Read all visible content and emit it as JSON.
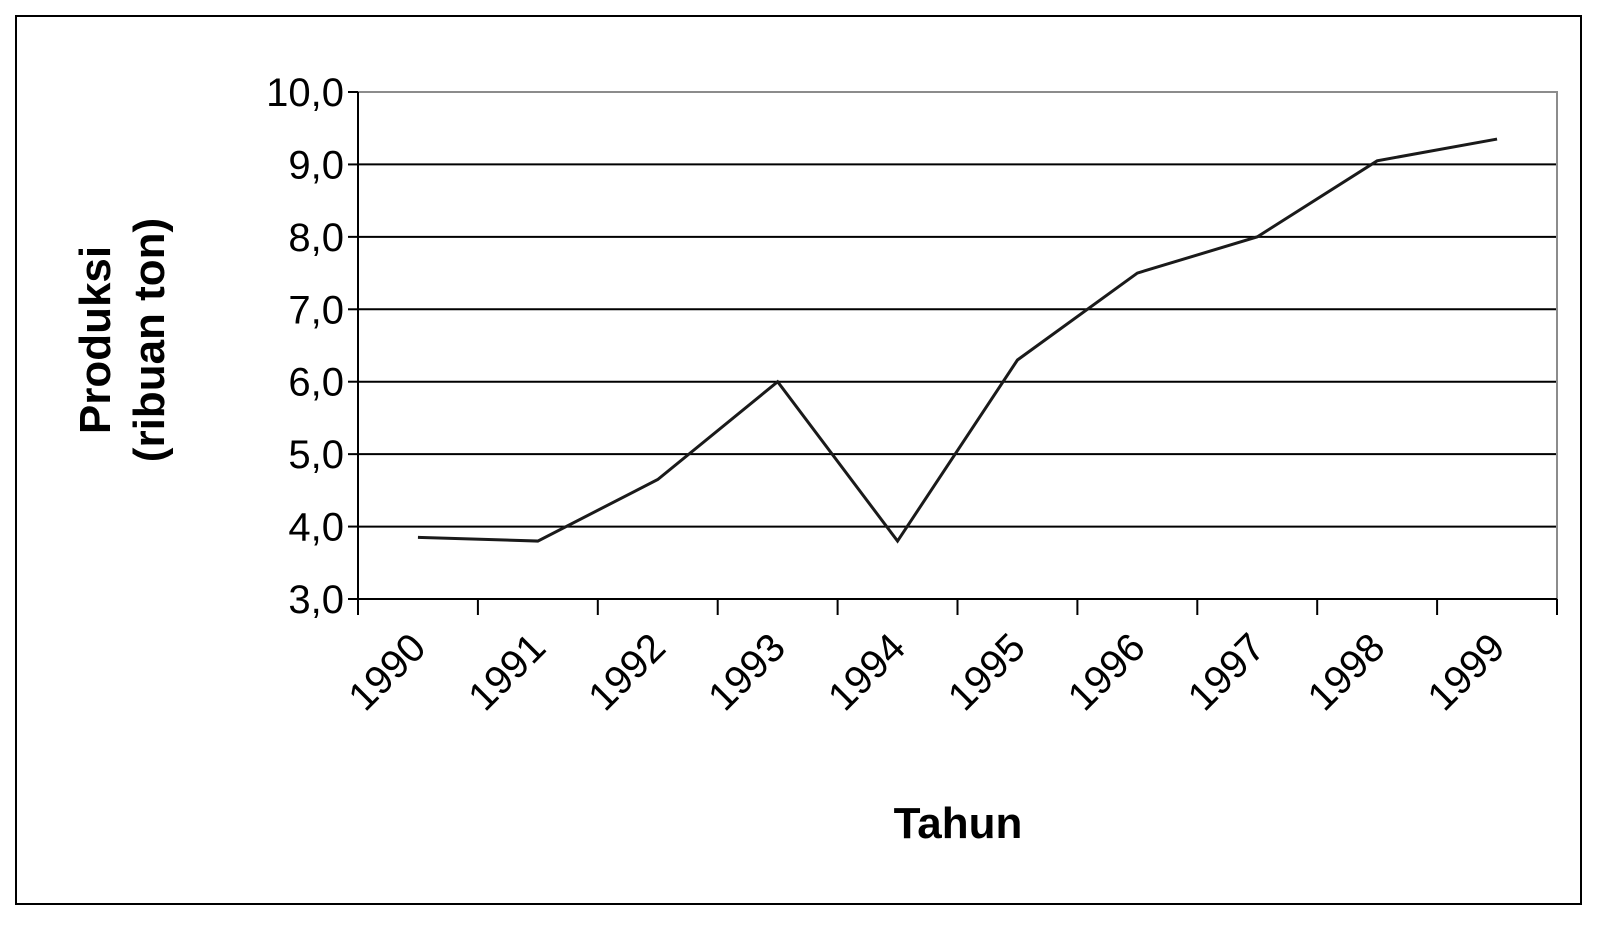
{
  "chart_data": {
    "type": "line",
    "title": "",
    "xlabel": "Tahun",
    "ylabel_line1": "Produksi",
    "ylabel_line2": "(ribuan ton)",
    "categories": [
      "1990",
      "1991",
      "1992",
      "1993",
      "1994",
      "1995",
      "1996",
      "1997",
      "1998",
      "1999"
    ],
    "series": [
      {
        "values": [
          3.85,
          3.8,
          4.65,
          6.0,
          3.8,
          6.3,
          7.5,
          8.0,
          9.05,
          9.35
        ]
      }
    ],
    "ylim": [
      3.0,
      10.0
    ],
    "yticks": [
      "3,0",
      "4,0",
      "5,0",
      "6,0",
      "7,0",
      "8,0",
      "9,0",
      "10,0"
    ],
    "ytick_values": [
      3,
      4,
      5,
      6,
      7,
      8,
      9,
      10
    ],
    "grid": true,
    "legend": "none",
    "line_color": "#1a1a1a",
    "grid_color": "#000000",
    "axis_color": "#000000"
  }
}
